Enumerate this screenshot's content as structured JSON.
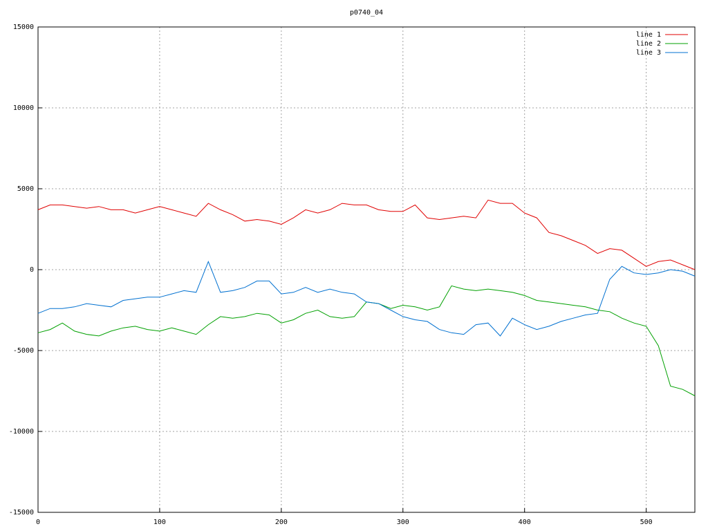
{
  "chart_data": {
    "type": "line",
    "title": "p0740_04",
    "x": [
      0,
      10,
      20,
      30,
      40,
      50,
      60,
      70,
      80,
      90,
      100,
      110,
      120,
      130,
      140,
      150,
      160,
      170,
      180,
      190,
      200,
      210,
      220,
      230,
      240,
      250,
      260,
      270,
      280,
      290,
      300,
      310,
      320,
      330,
      340,
      350,
      360,
      370,
      380,
      390,
      400,
      410,
      420,
      430,
      440,
      450,
      460,
      470,
      480,
      490,
      500,
      510,
      520,
      530,
      540
    ],
    "series": [
      {
        "name": "line 1",
        "color": "#e00000",
        "values": [
          3700,
          4000,
          4000,
          3900,
          3800,
          3900,
          3700,
          3700,
          3500,
          3700,
          3900,
          3700,
          3500,
          3300,
          4100,
          3700,
          3400,
          3000,
          3100,
          3000,
          2800,
          3200,
          3700,
          3500,
          3700,
          4100,
          4000,
          4000,
          3700,
          3600,
          3600,
          4000,
          3200,
          3100,
          3200,
          3300,
          3200,
          4300,
          4100,
          4100,
          3500,
          3200,
          2300,
          2100,
          1800,
          1500,
          1000,
          1300,
          1200,
          700,
          200,
          500,
          600,
          300,
          0
        ]
      },
      {
        "name": "line 2",
        "color": "#00a000",
        "values": [
          -3900,
          -3700,
          -3300,
          -3800,
          -4000,
          -4100,
          -3800,
          -3600,
          -3500,
          -3700,
          -3800,
          -3600,
          -3800,
          -4000,
          -3400,
          -2900,
          -3000,
          -2900,
          -2700,
          -2800,
          -3300,
          -3100,
          -2700,
          -2500,
          -2900,
          -3000,
          -2900,
          -2000,
          -2100,
          -2400,
          -2200,
          -2300,
          -2500,
          -2300,
          -1000,
          -1200,
          -1300,
          -1200,
          -1300,
          -1400,
          -1600,
          -1900,
          -2000,
          -2100,
          -2200,
          -2300,
          -2500,
          -2600,
          -3000,
          -3300,
          -3500,
          -4700,
          -7200,
          -7400,
          -7800
        ]
      },
      {
        "name": "line 3",
        "color": "#0070d0",
        "values": [
          -2700,
          -2400,
          -2400,
          -2300,
          -2100,
          -2200,
          -2300,
          -1900,
          -1800,
          -1700,
          -1700,
          -1500,
          -1300,
          -1400,
          500,
          -1400,
          -1300,
          -1100,
          -700,
          -700,
          -1500,
          -1400,
          -1100,
          -1400,
          -1200,
          -1400,
          -1500,
          -2000,
          -2100,
          -2500,
          -2900,
          -3100,
          -3200,
          -3700,
          -3900,
          -4000,
          -3400,
          -3300,
          -4100,
          -3000,
          -3400,
          -3700,
          -3500,
          -3200,
          -3000,
          -2800,
          -2700,
          -600,
          200,
          -200,
          -300,
          -200,
          0,
          -100,
          -400
        ]
      }
    ],
    "xlim": [
      0,
      540
    ],
    "xticks": [
      0,
      100,
      200,
      300,
      400,
      500
    ],
    "ylim": [
      -15000,
      15000
    ],
    "yticks": [
      -15000,
      -10000,
      -5000,
      0,
      5000,
      10000,
      15000
    ],
    "grid": true,
    "legend": "top-right"
  }
}
